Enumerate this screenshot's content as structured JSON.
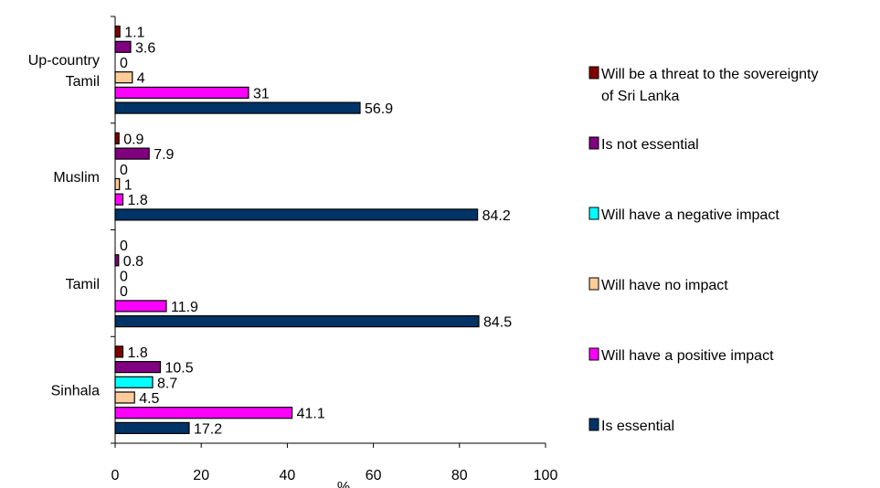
{
  "chart_data": {
    "type": "bar",
    "orientation": "horizontal",
    "categories": [
      "Up-country Tamil",
      "Muslim",
      "Tamil",
      "Sinhala"
    ],
    "category_lines": [
      [
        "Up-country",
        "Tamil"
      ],
      [
        "Muslim"
      ],
      [
        "Tamil"
      ],
      [
        "Sinhala"
      ]
    ],
    "series": [
      {
        "name": "Will be a threat to the sovereignty of Sri Lanka",
        "legend_lines": [
          "Will be a threat to the sovereignty",
          "of Sri Lanka"
        ],
        "color": "#800000",
        "values": [
          1.1,
          0.9,
          0,
          1.8
        ]
      },
      {
        "name": "Is not essential",
        "legend_lines": [
          "Is not essential"
        ],
        "color": "#800080",
        "values": [
          3.6,
          7.9,
          0.8,
          10.5
        ]
      },
      {
        "name": "Will have a negative impact",
        "legend_lines": [
          "Will have a negative impact"
        ],
        "color": "#00FFFF",
        "values": [
          0,
          0,
          0,
          8.7
        ]
      },
      {
        "name": "Will have no impact",
        "legend_lines": [
          "Will have no impact"
        ],
        "color": "#FFCC99",
        "values": [
          4,
          1,
          0,
          4.5
        ]
      },
      {
        "name": "Will have a positive impact",
        "legend_lines": [
          "Will have a positive impact"
        ],
        "color": "#FF00FF",
        "values": [
          31,
          1.8,
          11.9,
          41.1
        ]
      },
      {
        "name": "Is essential",
        "legend_lines": [
          "Is essential"
        ],
        "color": "#003366",
        "values": [
          56.9,
          84.2,
          84.5,
          17.2
        ]
      }
    ],
    "value_labels": [
      [
        "1.1",
        "0.9",
        "0",
        "1.8"
      ],
      [
        "3.6",
        "7.9",
        "0.8",
        "10.5"
      ],
      [
        "0",
        "0",
        "0",
        "8.7"
      ],
      [
        "4",
        "1",
        "0",
        "4.5"
      ],
      [
        "31",
        "1.8",
        "11.9",
        "41.1"
      ],
      [
        "56.9",
        "84.2",
        "84.5",
        "17.2"
      ]
    ],
    "xlim": [
      0,
      100
    ],
    "xticks": [
      "0",
      "20",
      "40",
      "60",
      "80",
      "100"
    ],
    "xlabel": "%",
    "ylabel": "",
    "title": "",
    "grid": false,
    "legend_position": "right"
  }
}
